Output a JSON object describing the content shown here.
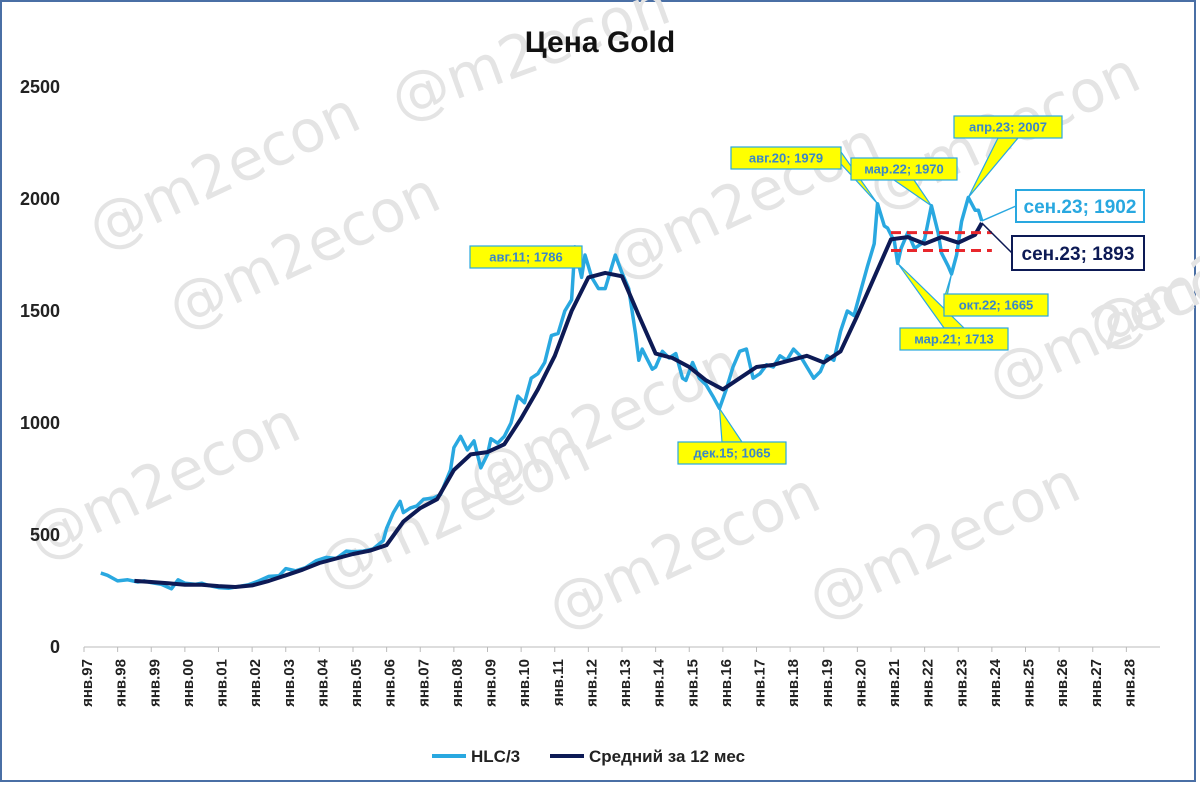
{
  "chart_data": {
    "type": "line",
    "title": "Цена Gold",
    "ylim": [
      0,
      2500
    ],
    "yticks": [
      "0",
      "500",
      "1000",
      "1500",
      "2000",
      "2500"
    ],
    "ytick_values": [
      0,
      500,
      1000,
      1500,
      2000,
      2500
    ],
    "categories": [
      "янв.97",
      "янв.98",
      "янв.99",
      "янв.00",
      "янв.01",
      "янв.02",
      "янв.03",
      "янв.04",
      "янв.05",
      "янв.06",
      "янв.07",
      "янв.08",
      "янв.09",
      "янв.10",
      "янв.11",
      "янв.12",
      "янв.13",
      "янв.14",
      "янв.15",
      "янв.16",
      "янв.17",
      "янв.18",
      "янв.19",
      "янв.20",
      "янв.21",
      "янв.22",
      "янв.23",
      "янв.24",
      "янв.25",
      "янв.26",
      "янв.27",
      "янв.28"
    ],
    "x_start_year": 1997,
    "grid": false,
    "legend_position": "bottom",
    "series": [
      {
        "name": "HLC/3",
        "color": "#29a8e0",
        "points": [
          [
            1997.5,
            330
          ],
          [
            1997.7,
            320
          ],
          [
            1998.0,
            295
          ],
          [
            1998.3,
            300
          ],
          [
            1998.6,
            290
          ],
          [
            1998.8,
            295
          ],
          [
            1999.0,
            287
          ],
          [
            1999.3,
            280
          ],
          [
            1999.6,
            260
          ],
          [
            1999.8,
            300
          ],
          [
            2000.0,
            285
          ],
          [
            2000.3,
            280
          ],
          [
            2000.5,
            285
          ],
          [
            2000.7,
            275
          ],
          [
            2001.0,
            265
          ],
          [
            2001.3,
            262
          ],
          [
            2001.6,
            270
          ],
          [
            2001.9,
            278
          ],
          [
            2002.2,
            295
          ],
          [
            2002.5,
            315
          ],
          [
            2002.8,
            318
          ],
          [
            2003.0,
            350
          ],
          [
            2003.3,
            340
          ],
          [
            2003.6,
            355
          ],
          [
            2003.9,
            385
          ],
          [
            2004.2,
            400
          ],
          [
            2004.5,
            395
          ],
          [
            2004.8,
            428
          ],
          [
            2005.0,
            425
          ],
          [
            2005.3,
            428
          ],
          [
            2005.6,
            438
          ],
          [
            2005.9,
            475
          ],
          [
            2006.0,
            530
          ],
          [
            2006.2,
            600
          ],
          [
            2006.4,
            650
          ],
          [
            2006.5,
            600
          ],
          [
            2006.7,
            620
          ],
          [
            2006.9,
            630
          ],
          [
            2007.1,
            660
          ],
          [
            2007.4,
            665
          ],
          [
            2007.6,
            680
          ],
          [
            2007.9,
            790
          ],
          [
            2008.0,
            890
          ],
          [
            2008.2,
            940
          ],
          [
            2008.4,
            880
          ],
          [
            2008.6,
            920
          ],
          [
            2008.8,
            800
          ],
          [
            2009.0,
            860
          ],
          [
            2009.1,
            930
          ],
          [
            2009.3,
            910
          ],
          [
            2009.5,
            940
          ],
          [
            2009.7,
            1000
          ],
          [
            2009.9,
            1120
          ],
          [
            2010.1,
            1090
          ],
          [
            2010.3,
            1200
          ],
          [
            2010.5,
            1220
          ],
          [
            2010.7,
            1270
          ],
          [
            2010.9,
            1390
          ],
          [
            2011.1,
            1400
          ],
          [
            2011.3,
            1500
          ],
          [
            2011.5,
            1550
          ],
          [
            2011.6,
            1786
          ],
          [
            2011.8,
            1650
          ],
          [
            2011.9,
            1750
          ],
          [
            2012.0,
            1700
          ],
          [
            2012.1,
            1650
          ],
          [
            2012.3,
            1600
          ],
          [
            2012.5,
            1600
          ],
          [
            2012.7,
            1700
          ],
          [
            2012.8,
            1750
          ],
          [
            2013.0,
            1670
          ],
          [
            2013.2,
            1600
          ],
          [
            2013.4,
            1400
          ],
          [
            2013.5,
            1280
          ],
          [
            2013.6,
            1330
          ],
          [
            2013.7,
            1300
          ],
          [
            2013.9,
            1240
          ],
          [
            2014.0,
            1250
          ],
          [
            2014.2,
            1320
          ],
          [
            2014.4,
            1290
          ],
          [
            2014.6,
            1310
          ],
          [
            2014.8,
            1200
          ],
          [
            2014.9,
            1190
          ],
          [
            2015.1,
            1270
          ],
          [
            2015.3,
            1200
          ],
          [
            2015.5,
            1170
          ],
          [
            2015.7,
            1120
          ],
          [
            2015.9,
            1065
          ],
          [
            2016.1,
            1150
          ],
          [
            2016.3,
            1250
          ],
          [
            2016.5,
            1320
          ],
          [
            2016.7,
            1330
          ],
          [
            2016.9,
            1200
          ],
          [
            2017.1,
            1220
          ],
          [
            2017.3,
            1260
          ],
          [
            2017.5,
            1250
          ],
          [
            2017.7,
            1300
          ],
          [
            2017.9,
            1280
          ],
          [
            2018.1,
            1330
          ],
          [
            2018.3,
            1300
          ],
          [
            2018.5,
            1250
          ],
          [
            2018.7,
            1200
          ],
          [
            2018.9,
            1230
          ],
          [
            2019.1,
            1300
          ],
          [
            2019.3,
            1280
          ],
          [
            2019.5,
            1410
          ],
          [
            2019.7,
            1500
          ],
          [
            2019.9,
            1480
          ],
          [
            2020.1,
            1590
          ],
          [
            2020.3,
            1700
          ],
          [
            2020.5,
            1800
          ],
          [
            2020.6,
            1979
          ],
          [
            2020.8,
            1880
          ],
          [
            2020.9,
            1870
          ],
          [
            2021.1,
            1810
          ],
          [
            2021.2,
            1713
          ],
          [
            2021.3,
            1780
          ],
          [
            2021.5,
            1850
          ],
          [
            2021.7,
            1780
          ],
          [
            2021.9,
            1800
          ],
          [
            2022.0,
            1820
          ],
          [
            2022.2,
            1970
          ],
          [
            2022.4,
            1850
          ],
          [
            2022.5,
            1760
          ],
          [
            2022.7,
            1700
          ],
          [
            2022.8,
            1665
          ],
          [
            2022.95,
            1750
          ],
          [
            2023.1,
            1900
          ],
          [
            2023.3,
            2007
          ],
          [
            2023.5,
            1950
          ],
          [
            2023.6,
            1950
          ],
          [
            2023.7,
            1902
          ]
        ]
      },
      {
        "name": "Средний за 12 мес",
        "color": "#0d1a55",
        "points": [
          [
            1998.5,
            295
          ],
          [
            1999.0,
            290
          ],
          [
            1999.5,
            285
          ],
          [
            2000.0,
            278
          ],
          [
            2000.5,
            278
          ],
          [
            2001.0,
            272
          ],
          [
            2001.5,
            268
          ],
          [
            2002.0,
            275
          ],
          [
            2002.5,
            295
          ],
          [
            2003.0,
            320
          ],
          [
            2003.5,
            345
          ],
          [
            2004.0,
            375
          ],
          [
            2004.5,
            395
          ],
          [
            2005.0,
            415
          ],
          [
            2005.5,
            430
          ],
          [
            2006.0,
            455
          ],
          [
            2006.5,
            560
          ],
          [
            2007.0,
            620
          ],
          [
            2007.5,
            660
          ],
          [
            2008.0,
            790
          ],
          [
            2008.5,
            860
          ],
          [
            2009.0,
            870
          ],
          [
            2009.5,
            905
          ],
          [
            2010.0,
            1020
          ],
          [
            2010.5,
            1150
          ],
          [
            2011.0,
            1300
          ],
          [
            2011.5,
            1500
          ],
          [
            2012.0,
            1650
          ],
          [
            2012.5,
            1670
          ],
          [
            2013.0,
            1655
          ],
          [
            2013.5,
            1480
          ],
          [
            2014.0,
            1310
          ],
          [
            2014.5,
            1290
          ],
          [
            2015.0,
            1250
          ],
          [
            2015.5,
            1190
          ],
          [
            2016.0,
            1150
          ],
          [
            2016.5,
            1200
          ],
          [
            2017.0,
            1250
          ],
          [
            2017.5,
            1260
          ],
          [
            2018.0,
            1280
          ],
          [
            2018.5,
            1300
          ],
          [
            2019.0,
            1270
          ],
          [
            2019.5,
            1320
          ],
          [
            2020.0,
            1480
          ],
          [
            2020.5,
            1650
          ],
          [
            2021.0,
            1820
          ],
          [
            2021.5,
            1830
          ],
          [
            2022.0,
            1800
          ],
          [
            2022.5,
            1830
          ],
          [
            2023.0,
            1805
          ],
          [
            2023.5,
            1840
          ],
          [
            2023.7,
            1893
          ]
        ]
      }
    ],
    "resistance_band": [
      1770,
      1850
    ],
    "resistance_band_x": [
      2021.0,
      2024.0
    ],
    "band_color": "#e8272c",
    "annotations": [
      {
        "text": "авг.11; 1786",
        "x": 2011.6,
        "y": 1786,
        "style": "yellow"
      },
      {
        "text": "авг.20; 1979",
        "x": 2020.6,
        "y": 1979,
        "style": "yellow"
      },
      {
        "text": "мар.22; 1970",
        "x": 2022.2,
        "y": 1970,
        "style": "yellow"
      },
      {
        "text": "апр.23; 2007",
        "x": 2023.3,
        "y": 2007,
        "style": "yellow"
      },
      {
        "text": "дек.15; 1065",
        "x": 2015.9,
        "y": 1065,
        "style": "yellow"
      },
      {
        "text": "мар.21; 1713",
        "x": 2021.2,
        "y": 1713,
        "style": "yellow"
      },
      {
        "text": "окт.22; 1665",
        "x": 2022.8,
        "y": 1665,
        "style": "yellow"
      },
      {
        "text": "сен.23; 1902",
        "x": 2023.7,
        "y": 1902,
        "style": "white-light"
      },
      {
        "text": "сен.23; 1893",
        "x": 2023.7,
        "y": 1893,
        "style": "white-dark"
      }
    ]
  },
  "watermark": "@m2econ"
}
